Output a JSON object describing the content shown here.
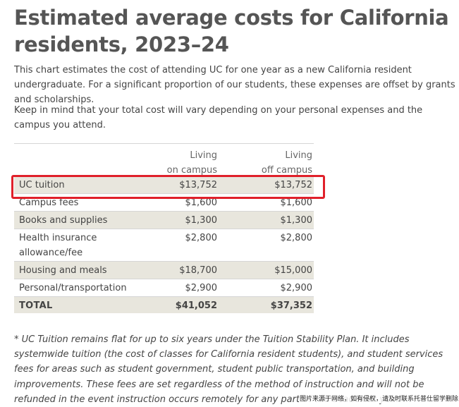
{
  "title": "Estimated average costs for California residents, 2023–24",
  "intro": [
    "This chart estimates the cost of attending UC for one year as a new California resident undergraduate. For a significant proportion of our students, these expenses are offset by grants and scholarships.",
    "Keep in mind that your total cost will vary depending on your personal expenses and the campus you attend."
  ],
  "table": {
    "headers": {
      "on_campus": [
        "Living",
        "on campus"
      ],
      "off_campus": [
        "Living",
        "off campus"
      ]
    },
    "rows": [
      {
        "label": "UC tuition",
        "on_campus": "$13,752",
        "off_campus": "$13,752"
      },
      {
        "label": "Campus fees",
        "on_campus": "$1,600",
        "off_campus": "$1,600"
      },
      {
        "label": "Books and supplies",
        "on_campus": "$1,300",
        "off_campus": "$1,300"
      },
      {
        "label": "Health insurance allowance/fee",
        "on_campus": "$2,800",
        "off_campus": "$2,800"
      },
      {
        "label": "Housing and meals",
        "on_campus": "$18,700",
        "off_campus": "$15,000"
      },
      {
        "label": "Personal/transportation",
        "on_campus": "$2,900",
        "off_campus": "$2,900"
      }
    ],
    "total": {
      "label": "TOTAL",
      "on_campus": "$41,052",
      "off_campus": "$37,352"
    },
    "highlighted_row": "UC tuition",
    "highlight_color": "#e0202a",
    "shade_color": "#e8e6dd"
  },
  "footnote": "* UC Tuition remains flat for up to six years under the Tuition Stability Plan. It includes systemwide tuition (the cost of classes for California resident students), and student services fees for areas such as student government, student public transportation, and building improvements. These fees are set regardless of the method of instruction and will not be refunded in the event instruction occurs remotely for any part of the academic year.",
  "watermark": "图片来源于网络，如有侵权，请及时联系托普仕留学删除"
}
